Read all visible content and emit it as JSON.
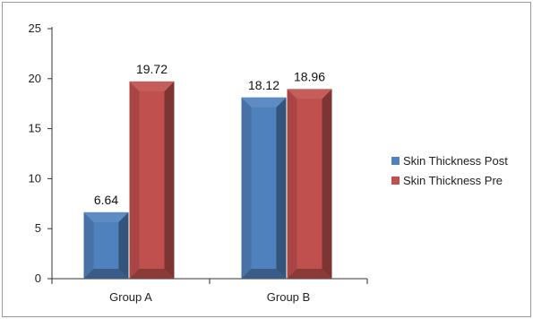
{
  "chart_data": {
    "type": "bar",
    "categories": [
      "Group A",
      "Group B"
    ],
    "series": [
      {
        "name": "Skin Thickness Post",
        "values": [
          6.64,
          18.12
        ],
        "color": "#4f81bd"
      },
      {
        "name": "Skin Thickness Pre",
        "values": [
          19.72,
          18.96
        ],
        "color": "#c0504d"
      }
    ],
    "data_labels": [
      [
        "6.64",
        "18.12"
      ],
      [
        "19.72",
        "18.96"
      ]
    ],
    "ylim": [
      0,
      25
    ],
    "yticks": [
      0,
      5,
      10,
      15,
      20,
      25
    ],
    "ytick_labels": [
      "0",
      "5",
      "10",
      "15",
      "20",
      "25"
    ],
    "grid": false,
    "legend_position": "right"
  }
}
